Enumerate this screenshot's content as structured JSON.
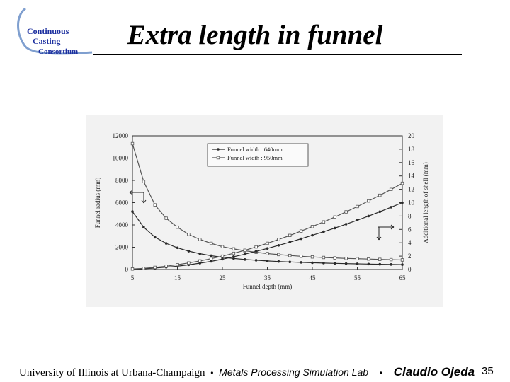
{
  "logo": {
    "lines": [
      "Continuous",
      "Casting",
      "Consortium"
    ]
  },
  "title": "Extra length in funnel",
  "footer": {
    "university": "University of Illinois at Urbana-Champaign",
    "separator": "•",
    "lab": "Metals Processing Simulation Lab",
    "author": "Claudio Ojeda",
    "page_number": "35"
  },
  "chart_data": {
    "type": "line",
    "xlabel": "Funnel depth (mm)",
    "ylabel": "Funnel radius (mm)",
    "y2label": "Additional length of shell (mm)",
    "xlim": [
      5,
      65
    ],
    "ylim": [
      0,
      12000
    ],
    "y2lim": [
      0,
      20
    ],
    "xticks": [
      "5",
      "15",
      "25",
      "35",
      "45",
      "55",
      "65"
    ],
    "yticks": [
      "0",
      "2000",
      "4000",
      "6000",
      "8000",
      "10000",
      "12000"
    ],
    "y2ticks": [
      "0",
      "2",
      "4",
      "6",
      "8",
      "10",
      "12",
      "14",
      "16",
      "18",
      "20"
    ],
    "legend_position": "top-center",
    "x": [
      5,
      7.5,
      10,
      12.5,
      15,
      17.5,
      20,
      22.5,
      25,
      27.5,
      30,
      32.5,
      35,
      37.5,
      40,
      42.5,
      45,
      47.5,
      50,
      52.5,
      55,
      57.5,
      60,
      62.5,
      65
    ],
    "series": [
      {
        "name": "Funnel width : 640mm",
        "axis": "left",
        "quantity": "radius",
        "values": [
          5200,
          3800,
          2900,
          2350,
          1950,
          1650,
          1420,
          1240,
          1100,
          990,
          900,
          830,
          770,
          720,
          680,
          640,
          610,
          580,
          555,
          530,
          510,
          490,
          470,
          455,
          440
        ]
      },
      {
        "name": "Funnel width : 950mm",
        "axis": "left",
        "quantity": "radius",
        "values": [
          11300,
          7900,
          5800,
          4600,
          3800,
          3150,
          2700,
          2350,
          2050,
          1850,
          1680,
          1550,
          1430,
          1340,
          1260,
          1190,
          1130,
          1080,
          1040,
          1000,
          970,
          940,
          910,
          885,
          860
        ]
      },
      {
        "name": "Funnel width : 640mm",
        "axis": "right",
        "quantity": "additional length",
        "values": [
          0.05,
          0.12,
          0.22,
          0.35,
          0.5,
          0.7,
          0.95,
          1.22,
          1.55,
          1.92,
          2.3,
          2.72,
          3.15,
          3.62,
          4.1,
          4.6,
          5.12,
          5.65,
          6.2,
          6.78,
          7.38,
          8.0,
          8.65,
          9.32,
          10.0
        ]
      },
      {
        "name": "Funnel width : 950mm",
        "axis": "right",
        "quantity": "additional length",
        "values": [
          0.08,
          0.18,
          0.32,
          0.5,
          0.72,
          0.98,
          1.28,
          1.62,
          2.0,
          2.42,
          2.88,
          3.38,
          3.92,
          4.5,
          5.1,
          5.75,
          6.42,
          7.12,
          7.85,
          8.62,
          9.42,
          10.25,
          11.1,
          11.98,
          12.9
        ]
      }
    ]
  }
}
